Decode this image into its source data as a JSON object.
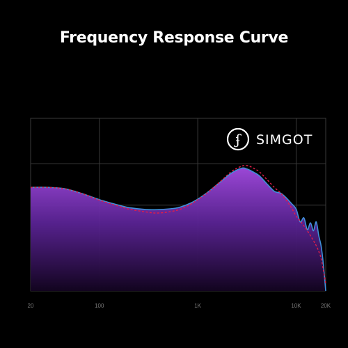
{
  "chart_data": {
    "type": "line",
    "title": "Frequency Response Curve",
    "xlabel": "",
    "ylabel": "",
    "x_scale": "log",
    "x_ticks": [
      "20",
      "100",
      "1K",
      "10K",
      "20K"
    ],
    "grid": true,
    "series": [
      {
        "style": "filled-line",
        "color": "#3f8fd9",
        "fill_top_color": "#9b47d6",
        "fill_bottom_color": "#12041f",
        "x": [
          20,
          30,
          45,
          70,
          100,
          150,
          200,
          300,
          400,
          600,
          800,
          1000,
          1300,
          1700,
          2200,
          2800,
          3200,
          3600,
          4200,
          5000,
          6000,
          7000,
          8000,
          9000,
          10000,
          11000,
          12000,
          13000,
          14000,
          15000,
          16000,
          17000,
          18000,
          19000,
          20000
        ],
        "values": [
          0.0,
          0.0,
          -0.3,
          -1.4,
          -2.5,
          -3.5,
          -4.1,
          -4.5,
          -4.5,
          -4.2,
          -3.4,
          -2.4,
          -0.8,
          1.1,
          2.9,
          3.9,
          3.7,
          3.2,
          2.4,
          0.8,
          -0.8,
          -1.2,
          -2.2,
          -3.3,
          -4.4,
          -7.0,
          -6.2,
          -8.6,
          -7.2,
          -8.8,
          -7.0,
          -9.8,
          -12.0,
          -16.0,
          -21.0
        ]
      },
      {
        "style": "dashed",
        "color": "#e11d48",
        "x": [
          20,
          30,
          45,
          70,
          100,
          150,
          200,
          300,
          400,
          600,
          800,
          1000,
          1300,
          1700,
          2200,
          2800,
          3200,
          3600,
          4200,
          5000,
          6000,
          7000,
          8000,
          9000,
          10000,
          11000,
          12000,
          13000,
          14000,
          15000,
          16000,
          17000,
          18000,
          19000,
          20000
        ],
        "values": [
          0.0,
          0.0,
          -0.3,
          -1.4,
          -2.6,
          -3.7,
          -4.4,
          -5.0,
          -5.2,
          -4.7,
          -3.7,
          -2.5,
          -0.8,
          1.2,
          3.2,
          4.3,
          4.4,
          4.0,
          3.2,
          1.7,
          0.0,
          -1.2,
          -2.7,
          -4.2,
          -5.8,
          -6.8,
          -7.8,
          -8.8,
          -9.8,
          -10.8,
          -11.8,
          -13.0,
          -14.5,
          -17.0,
          -19.5
        ]
      }
    ],
    "brand": {
      "logo_glyph": "ʄ",
      "name": "SIMGOT",
      "logo_color": "#ffffff"
    },
    "colors": {
      "background": "#000000",
      "grid": "#3a3a3a",
      "tick_label": "#7a7a7a",
      "title": "#ffffff"
    }
  }
}
